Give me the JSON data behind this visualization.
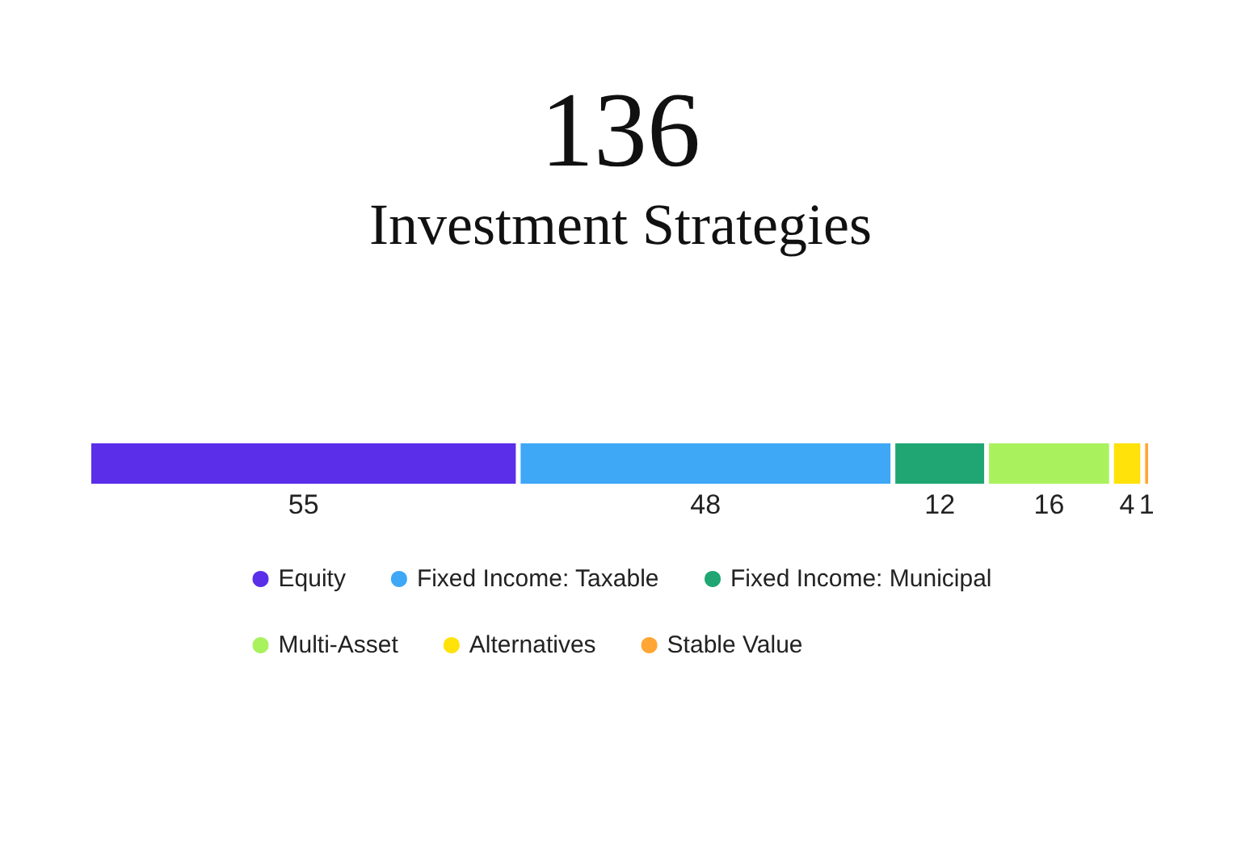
{
  "chart_data": {
    "type": "bar",
    "title": "136",
    "subtitle": "Investment Strategies",
    "orientation": "horizontal",
    "stacked": true,
    "categories": [
      null
    ],
    "series": [
      {
        "name": "Equity",
        "color": "#5b2eea",
        "values": [
          55
        ]
      },
      {
        "name": "Fixed Income: Taxable",
        "color": "#3ea8f7",
        "values": [
          48
        ]
      },
      {
        "name": "Fixed Income: Municipal",
        "color": "#1fa673",
        "values": [
          12
        ]
      },
      {
        "name": "Multi-Asset",
        "color": "#a9f25e",
        "values": [
          16
        ]
      },
      {
        "name": "Alternatives",
        "color": "#ffe20a",
        "values": [
          4
        ]
      },
      {
        "name": "Stable Value",
        "color": "#ffa635",
        "values": [
          1
        ]
      }
    ],
    "data_labels": true,
    "legend": "bottom"
  }
}
